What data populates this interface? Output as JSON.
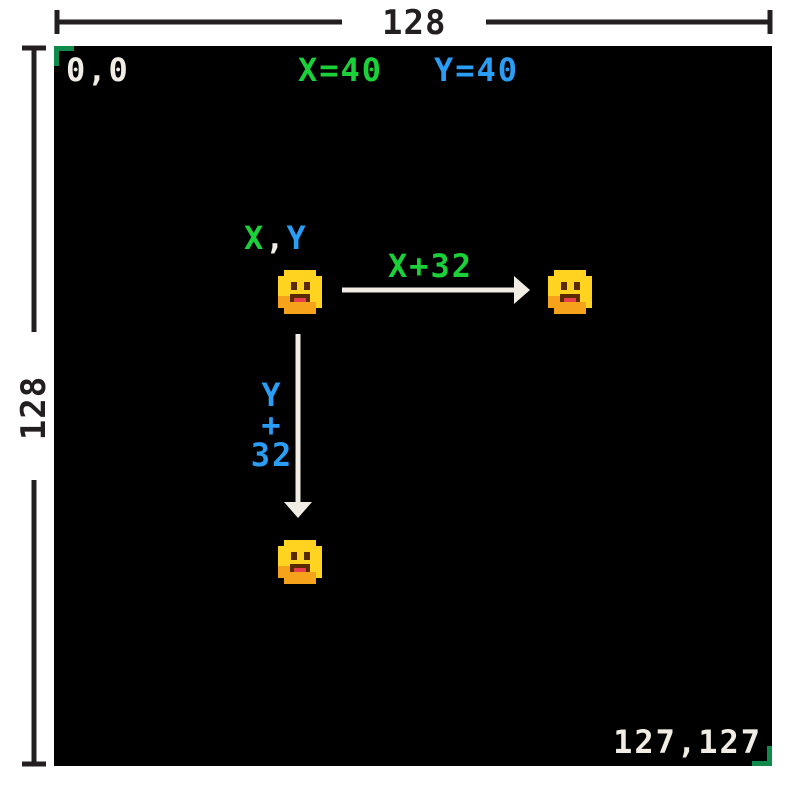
{
  "dimensions": {
    "width_label": "128",
    "height_label": "128"
  },
  "corners": {
    "top_left": "0,0",
    "bottom_right": "127,127"
  },
  "readout": {
    "x": "X=40",
    "y": "Y=40"
  },
  "origin_label": {
    "x": "X",
    "sep": ",",
    "y": "Y"
  },
  "arrows": {
    "right_label": "X+32",
    "down_label_y": "Y",
    "down_label_plus": "+",
    "down_label_num": "32"
  },
  "colors": {
    "screen_bg": "#000000",
    "green": "#1bd13a",
    "blue": "#2a9df4",
    "white": "#f2ede4",
    "dim_line": "#231f20",
    "corner_marker": "#0f8a4a",
    "sprite_yellow": "#ffd320",
    "sprite_orange": "#f7a21b",
    "sprite_dark": "#5a2a00"
  },
  "icons": {
    "sprite": "smiley-face-icon",
    "arrow": "arrow-icon"
  }
}
